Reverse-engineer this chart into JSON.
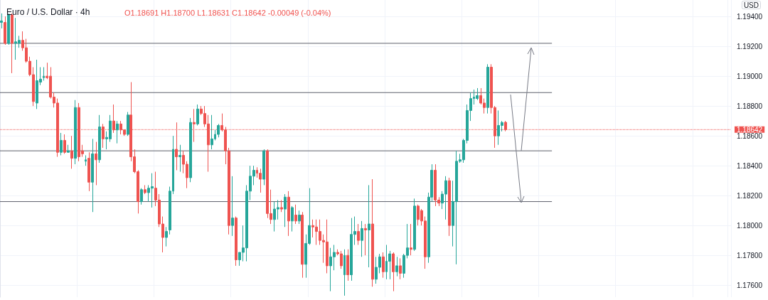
{
  "chart_data": {
    "type": "candlestick",
    "title": "Euro / U.S. Dollar · 4h",
    "annotations": [
      "USD",
      "O1.18691 H1.18700 L1.18631 C1.18642 -0.00049 (-0.04%)"
    ],
    "categories": [
      null,
      null,
      null,
      null,
      null,
      null,
      null,
      null,
      null,
      null,
      null,
      null,
      null,
      null,
      null,
      null,
      null,
      null,
      null,
      null,
      null,
      null,
      null,
      null,
      null,
      null,
      null,
      null,
      null,
      null,
      null,
      null,
      null,
      null,
      null,
      null,
      null,
      null,
      null,
      null,
      null,
      null,
      null,
      null,
      null,
      null,
      null,
      null,
      null,
      null,
      null,
      null,
      null,
      null,
      null,
      null,
      null,
      null,
      null,
      null,
      null,
      null,
      null,
      null,
      null,
      null,
      null,
      null,
      null,
      null,
      null,
      null,
      null,
      null,
      null,
      null,
      null,
      null,
      null,
      null,
      null,
      null,
      null,
      null,
      null,
      null,
      null,
      null,
      null,
      null,
      null,
      null,
      null,
      null,
      null,
      null,
      null,
      null,
      null,
      null,
      null,
      null,
      null,
      null,
      null,
      null,
      null,
      null,
      null,
      null,
      null,
      null,
      null,
      null,
      null,
      null,
      null,
      null,
      null,
      null,
      null,
      null,
      null,
      null,
      null,
      null,
      null,
      null,
      null,
      null,
      null,
      null,
      null,
      null,
      null,
      null,
      null,
      null,
      null,
      null,
      null,
      null,
      null,
      null,
      null,
      null,
      null,
      null,
      null,
      null,
      null,
      null,
      null,
      null,
      null,
      null,
      null,
      null,
      null,
      null,
      null,
      null,
      null,
      null,
      null,
      null,
      null,
      null,
      null,
      null,
      null,
      null,
      null,
      null,
      null,
      null,
      null,
      null,
      null,
      null,
      null,
      null,
      null,
      null,
      null,
      null,
      null,
      null,
      null,
      null,
      null,
      null,
      null,
      null,
      null,
      null,
      null,
      null,
      null,
      null,
      null,
      null,
      null,
      null,
      null,
      null,
      null,
      null,
      null
    ],
    "ohlc": [
      [
        1.1936,
        1.1942,
        1.1932,
        1.1937
      ],
      [
        1.1936,
        1.194,
        1.1921,
        1.1922
      ],
      [
        1.1922,
        1.1942,
        1.1921,
        1.1941
      ],
      [
        1.1941,
        1.1942,
        1.1902,
        1.1922
      ],
      [
        1.1922,
        1.1939,
        1.1911,
        1.1923
      ],
      [
        1.1922,
        1.1927,
        1.1919,
        1.1924
      ],
      [
        1.1924,
        1.193,
        1.1917,
        1.1919
      ],
      [
        1.1919,
        1.1925,
        1.1909,
        1.191
      ],
      [
        1.191,
        1.1913,
        1.19,
        1.1901
      ],
      [
        1.1901,
        1.1906,
        1.188,
        1.1883
      ],
      [
        1.1882,
        1.1911,
        1.1878,
        1.1897
      ],
      [
        1.1896,
        1.1906,
        1.1894,
        1.1898
      ],
      [
        1.1899,
        1.1906,
        1.1897,
        1.19
      ],
      [
        1.19,
        1.1909,
        1.1898,
        1.1899
      ],
      [
        1.19,
        1.1906,
        1.1885,
        1.1886
      ],
      [
        1.1886,
        1.1889,
        1.1879,
        1.1882
      ],
      [
        1.1882,
        1.1885,
        1.1846,
        1.1849
      ],
      [
        1.1849,
        1.1862,
        1.1847,
        1.1857
      ],
      [
        1.1857,
        1.1861,
        1.1848,
        1.1849
      ],
      [
        1.1849,
        1.1854,
        1.1849,
        1.185
      ],
      [
        1.185,
        1.186,
        1.1838,
        1.1845
      ],
      [
        1.1845,
        1.1884,
        1.1841,
        1.1879
      ],
      [
        1.1879,
        1.1882,
        1.1843,
        1.1846
      ],
      [
        1.185,
        1.1854,
        1.1846,
        1.1848
      ],
      [
        1.1843,
        1.1847,
        1.184,
        1.1844
      ],
      [
        1.1845,
        1.1849,
        1.1823,
        1.1829
      ],
      [
        1.1829,
        1.1858,
        1.1809,
        1.1848
      ],
      [
        1.1848,
        1.1856,
        1.1827,
        1.1844
      ],
      [
        1.1844,
        1.1874,
        1.1842,
        1.1866
      ],
      [
        1.1866,
        1.1868,
        1.1852,
        1.1858
      ],
      [
        1.1858,
        1.1863,
        1.1851,
        1.1859
      ],
      [
        1.1858,
        1.1874,
        1.1856,
        1.187
      ],
      [
        1.187,
        1.1881,
        1.1862,
        1.1864
      ],
      [
        1.1864,
        1.187,
        1.1855,
        1.1868
      ],
      [
        1.1868,
        1.187,
        1.1861,
        1.1864
      ],
      [
        1.1864,
        1.1864,
        1.186,
        1.1861
      ],
      [
        1.1861,
        1.1876,
        1.186,
        1.1874
      ],
      [
        1.1874,
        1.1896,
        1.1843,
        1.1846
      ],
      [
        1.1846,
        1.1851,
        1.1835,
        1.1836
      ],
      [
        1.1836,
        1.1837,
        1.1808,
        1.1816
      ],
      [
        1.1816,
        1.1825,
        1.1814,
        1.1824
      ],
      [
        1.1824,
        1.1827,
        1.1821,
        1.1822
      ],
      [
        1.1822,
        1.1827,
        1.1816,
        1.1825
      ],
      [
        1.1825,
        1.1835,
        1.1812,
        1.1826
      ],
      [
        1.1825,
        1.1836,
        1.1813,
        1.1817
      ],
      [
        1.1817,
        1.1821,
        1.1799,
        1.1801
      ],
      [
        1.1801,
        1.1806,
        1.1782,
        1.1792
      ],
      [
        1.1792,
        1.1799,
        1.1786,
        1.1796
      ],
      [
        1.1797,
        1.1826,
        1.1794,
        1.1823
      ],
      [
        1.1823,
        1.186,
        1.1821,
        1.1851
      ],
      [
        1.1851,
        1.1869,
        1.1837,
        1.1846
      ],
      [
        1.1846,
        1.1854,
        1.1836,
        1.1847
      ],
      [
        1.1847,
        1.185,
        1.1835,
        1.1841
      ],
      [
        1.1841,
        1.1843,
        1.1825,
        1.1832
      ],
      [
        1.1832,
        1.1872,
        1.1829,
        1.1869
      ],
      [
        1.1869,
        1.1878,
        1.1856,
        1.1868
      ],
      [
        1.1868,
        1.1881,
        1.1867,
        1.1878
      ],
      [
        1.1878,
        1.188,
        1.1874,
        1.1875
      ],
      [
        1.1875,
        1.188,
        1.1866,
        1.1868
      ],
      [
        1.1868,
        1.1874,
        1.1836,
        1.1854
      ],
      [
        1.1854,
        1.1874,
        1.1851,
        1.1858
      ],
      [
        1.1858,
        1.1864,
        1.1857,
        1.1861
      ],
      [
        1.1861,
        1.1868,
        1.1859,
        1.1867
      ],
      [
        1.1867,
        1.1875,
        1.1863,
        1.1864
      ],
      [
        1.1864,
        1.1866,
        1.1841,
        1.185
      ],
      [
        1.185,
        1.1852,
        1.1794,
        1.18
      ],
      [
        1.18,
        1.1833,
        1.1793,
        1.1805
      ],
      [
        1.1805,
        1.1806,
        1.1773,
        1.1777
      ],
      [
        1.1777,
        1.1782,
        1.1773,
        1.1782
      ],
      [
        1.1782,
        1.18,
        1.1776,
        1.1785
      ],
      [
        1.1785,
        1.1827,
        1.1776,
        1.1823
      ],
      [
        1.1823,
        1.184,
        1.1817,
        1.1833
      ],
      [
        1.1833,
        1.184,
        1.1827,
        1.1837
      ],
      [
        1.1837,
        1.1839,
        1.1832,
        1.1835
      ],
      [
        1.1835,
        1.1838,
        1.1822,
        1.1831
      ],
      [
        1.1831,
        1.1851,
        1.1827,
        1.185
      ],
      [
        1.185,
        1.1851,
        1.1805,
        1.1808
      ],
      [
        1.1808,
        1.1824,
        1.1801,
        1.1804
      ],
      [
        1.1804,
        1.1816,
        1.1796,
        1.1811
      ],
      [
        1.1811,
        1.1817,
        1.1804,
        1.1812
      ],
      [
        1.1812,
        1.1817,
        1.1809,
        1.1811
      ],
      [
        1.1811,
        1.1821,
        1.1799,
        1.1819
      ],
      [
        1.1819,
        1.1823,
        1.1793,
        1.1803
      ],
      [
        1.1803,
        1.1813,
        1.1796,
        1.1812
      ],
      [
        1.1807,
        1.1814,
        1.1801,
        1.1803
      ],
      [
        1.1803,
        1.181,
        1.1801,
        1.1807
      ],
      [
        1.1807,
        1.1809,
        1.1765,
        1.1774
      ],
      [
        1.1774,
        1.1794,
        1.1765,
        1.1788
      ],
      [
        1.1788,
        1.1825,
        1.1787,
        1.18
      ],
      [
        1.18,
        1.1804,
        1.1792,
        1.1799
      ],
      [
        1.1799,
        1.1804,
        1.1787,
        1.1796
      ],
      [
        1.1796,
        1.1804,
        1.1787,
        1.179
      ],
      [
        1.179,
        1.1794,
        1.1775,
        1.1789
      ],
      [
        1.1789,
        1.1804,
        1.1768,
        1.1773
      ],
      [
        1.1773,
        1.1785,
        1.1756,
        1.1779
      ],
      [
        1.1779,
        1.1787,
        1.177,
        1.1782
      ],
      [
        1.1782,
        1.1784,
        1.178,
        1.1781
      ],
      [
        1.1781,
        1.1783,
        1.1771,
        1.1773
      ],
      [
        1.1767,
        1.1784,
        1.1753,
        1.178
      ],
      [
        1.178,
        1.1784,
        1.1763,
        1.1767
      ],
      [
        1.1767,
        1.1805,
        1.1763,
        1.1794
      ],
      [
        1.1794,
        1.1806,
        1.1787,
        1.1796
      ],
      [
        1.1796,
        1.1801,
        1.1787,
        1.179
      ],
      [
        1.179,
        1.1803,
        1.1779,
        1.1798
      ],
      [
        1.1798,
        1.1801,
        1.178,
        1.1797
      ],
      [
        1.1797,
        1.1827,
        1.1772,
        1.1801
      ],
      [
        1.1801,
        1.1831,
        1.1759,
        1.1764
      ],
      [
        1.1764,
        1.1779,
        1.1761,
        1.1772
      ],
      [
        1.1772,
        1.1781,
        1.1768,
        1.1779
      ],
      [
        1.1779,
        1.1782,
        1.1765,
        1.1769
      ],
      [
        1.1769,
        1.1787,
        1.1764,
        1.1776
      ],
      [
        1.1776,
        1.1783,
        1.1764,
        1.1781
      ],
      [
        1.1781,
        1.1782,
        1.1756,
        1.1769
      ],
      [
        1.1769,
        1.1779,
        1.1766,
        1.1773
      ],
      [
        1.1773,
        1.1778,
        1.1764,
        1.1768
      ],
      [
        1.1768,
        1.1781,
        1.1765,
        1.178
      ],
      [
        1.178,
        1.1801,
        1.1778,
        1.1785
      ],
      [
        1.1785,
        1.1801,
        1.178,
        1.1784
      ],
      [
        1.1784,
        1.1818,
        1.1783,
        1.1813
      ],
      [
        1.1813,
        1.1814,
        1.18,
        1.1804
      ],
      [
        1.181,
        1.1811,
        1.18,
        1.1803
      ],
      [
        1.1803,
        1.1806,
        1.1771,
        1.1779
      ],
      [
        1.1779,
        1.1822,
        1.1775,
        1.1819
      ],
      [
        1.1819,
        1.1841,
        1.1816,
        1.1837
      ],
      [
        1.1837,
        1.1841,
        1.1813,
        1.1817
      ],
      [
        1.1817,
        1.1819,
        1.1813,
        1.1815
      ],
      [
        1.1815,
        1.1823,
        1.1811,
        1.1821
      ],
      [
        1.1821,
        1.1833,
        1.1804,
        1.183
      ],
      [
        1.183,
        1.1832,
        1.1793,
        1.18
      ],
      [
        1.18,
        1.183,
        1.1786,
        1.1816
      ],
      [
        1.1816,
        1.185,
        1.1774,
        1.1843
      ],
      [
        1.1843,
        1.1848,
        1.1842,
        1.1844
      ],
      [
        1.1844,
        1.1858,
        1.1842,
        1.1857
      ],
      [
        1.1857,
        1.1881,
        1.1855,
        1.1877
      ],
      [
        1.1877,
        1.1889,
        1.187,
        1.1885
      ],
      [
        1.1885,
        1.1891,
        1.1881,
        1.1886
      ],
      [
        1.1885,
        1.1892,
        1.1884,
        1.1887
      ],
      [
        1.1887,
        1.1892,
        1.1881,
        1.1882
      ],
      [
        1.1882,
        1.1885,
        1.1875,
        1.1879
      ],
      [
        1.1879,
        1.1908,
        1.1875,
        1.1906
      ],
      [
        1.1906,
        1.1908,
        1.1875,
        1.1879
      ],
      [
        1.1879,
        1.188,
        1.1852,
        1.186
      ],
      [
        1.186,
        1.1877,
        1.1854,
        1.1867
      ],
      [
        1.1867,
        1.187,
        1.1863,
        1.1869
      ],
      [
        1.18691,
        1.187,
        1.18631,
        1.18642
      ],
      null,
      null,
      null,
      null,
      null,
      null,
      null,
      null,
      null,
      null,
      null,
      null,
      null,
      null,
      null,
      null,
      null,
      null,
      null,
      null,
      null,
      null,
      null,
      null,
      null,
      null,
      null,
      null,
      null,
      null,
      null,
      null,
      null,
      null,
      null,
      null,
      null,
      null,
      null,
      null,
      null,
      null,
      null,
      null,
      null,
      null,
      null,
      null,
      null,
      null,
      null,
      null,
      null,
      null,
      null,
      null,
      null,
      null,
      null,
      null,
      null,
      null,
      null,
      null
    ],
    "colors": [
      "#26a69a",
      "#ef5350",
      "#26a69a",
      "#ef5350",
      "#26a69a",
      "#26a69a",
      "#ef5350",
      "#ef5350",
      "#ef5350",
      "#ef5350",
      "#26a69a",
      "#26a69a",
      "#26a69a",
      "#ef5350",
      "#ef5350",
      "#ef5350",
      "#ef5350",
      "#26a69a",
      "#ef5350",
      "#26a69a",
      "#ef5350",
      "#26a69a",
      "#ef5350",
      "#ef5350",
      "#26a69a",
      "#ef5350",
      "#26a69a",
      "#ef5350",
      "#26a69a",
      "#ef5350",
      "#26a69a",
      "#26a69a",
      "#ef5350",
      "#26a69a",
      "#ef5350",
      "#ef5350",
      "#26a69a",
      "#ef5350",
      "#ef5350",
      "#ef5350",
      "#26a69a",
      "#ef5350",
      "#26a69a",
      "#26a69a",
      "#ef5350",
      "#ef5350",
      "#ef5350",
      "#26a69a",
      "#26a69a",
      "#26a69a",
      "#ef5350",
      "#26a69a",
      "#ef5350",
      "#ef5350",
      "#26a69a",
      "#ef5350",
      "#26a69a",
      "#ef5350",
      "#ef5350",
      "#ef5350",
      "#26a69a",
      "#26a69a",
      "#26a69a",
      "#ef5350",
      "#ef5350",
      "#ef5350",
      "#26a69a",
      "#ef5350",
      "#26a69a",
      "#26a69a",
      "#26a69a",
      "#26a69a",
      "#26a69a",
      "#ef5350",
      "#ef5350",
      "#26a69a",
      "#ef5350",
      "#ef5350",
      "#26a69a",
      "#26a69a",
      "#ef5350",
      "#26a69a",
      "#ef5350",
      "#26a69a",
      "#ef5350",
      "#26a69a",
      "#ef5350",
      "#26a69a",
      "#26a69a",
      "#ef5350",
      "#ef5350",
      "#ef5350",
      "#ef5350",
      "#ef5350",
      "#26a69a",
      "#26a69a",
      "#ef5350",
      "#ef5350",
      "#26a69a",
      "#ef5350",
      "#26a69a",
      "#26a69a",
      "#ef5350",
      "#26a69a",
      "#ef5350",
      "#26a69a",
      "#ef5350",
      "#26a69a",
      "#26a69a",
      "#ef5350",
      "#26a69a",
      "#26a69a",
      "#ef5350",
      "#26a69a",
      "#ef5350",
      "#26a69a",
      "#26a69a",
      "#ef5350",
      "#26a69a",
      "#ef5350",
      "#ef5350",
      "#ef5350",
      "#26a69a",
      "#26a69a",
      "#ef5350",
      "#ef5350",
      "#26a69a",
      "#26a69a",
      "#ef5350",
      "#26a69a",
      "#26a69a",
      "#26a69a",
      "#26a69a",
      "#26a69a",
      "#26a69a",
      "#26a69a",
      "#26a69a",
      "#ef5350",
      "#ef5350",
      "#26a69a",
      "#ef5350",
      "#ef5350",
      "#26a69a",
      "#26a69a",
      "#ef5350",
      null,
      null,
      null,
      null,
      null,
      null,
      null,
      null,
      null,
      null,
      null,
      null,
      null,
      null,
      null,
      null,
      null,
      null,
      null,
      null,
      null,
      null,
      null,
      null,
      null,
      null,
      null,
      null,
      null,
      null,
      null,
      null,
      null,
      null,
      null,
      null,
      null,
      null,
      null,
      null,
      null,
      null,
      null,
      null,
      null,
      null,
      null,
      null,
      null,
      null,
      null,
      null,
      null,
      null,
      null,
      null,
      null,
      null,
      null,
      null,
      null,
      null,
      null,
      null
    ],
    "ylim": [
      1.1752,
      1.1951
    ],
    "yticks": [
      {
        "value": 1.176,
        "label": "1.17600"
      },
      {
        "value": 1.178,
        "label": "1.17800"
      },
      {
        "value": 1.18,
        "label": "1.18000"
      },
      {
        "value": 1.182,
        "label": "1.18200"
      },
      {
        "value": 1.184,
        "label": "1.18400"
      },
      {
        "value": 1.186,
        "label": "1.18600"
      },
      {
        "value": 1.188,
        "label": "1.18800"
      },
      {
        "value": 1.19,
        "label": "1.19000"
      },
      {
        "value": 1.192,
        "label": "1.19200"
      },
      {
        "value": 1.194,
        "label": "1.19400"
      }
    ],
    "ref_lines": [
      {
        "axis": "y",
        "value": 1.1922,
        "label": null,
        "color": "#5d606b",
        "line_style": "solid"
      },
      {
        "axis": "y",
        "value": 1.1889,
        "label": null,
        "color": "#5d606b",
        "line_style": "solid"
      },
      {
        "axis": "y",
        "value": 1.185,
        "label": null,
        "color": "#5d606b",
        "line_style": "solid"
      },
      {
        "axis": "y",
        "value": 1.1816,
        "label": null,
        "color": "#5d606b",
        "line_style": "solid"
      },
      {
        "axis": "y",
        "value": 1.18642,
        "label": "1.18642",
        "color": "#ef5350",
        "line_style": "dotted"
      }
    ],
    "grid": true,
    "tick_labels": "y"
  }
}
